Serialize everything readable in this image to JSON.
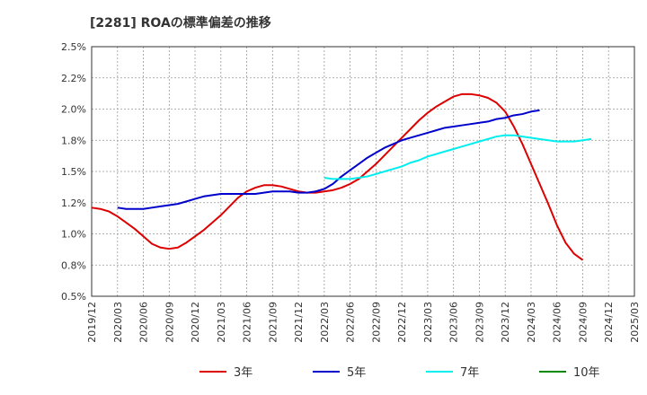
{
  "chart_data": {
    "type": "line",
    "title": "[2281]  ROAの標準偏差の推移",
    "xlabel": "",
    "ylabel": "",
    "x_ticks": [
      "2019/12",
      "2020/03",
      "2020/06",
      "2020/09",
      "2020/12",
      "2021/03",
      "2021/06",
      "2021/09",
      "2021/12",
      "2022/03",
      "2022/06",
      "2022/09",
      "2022/12",
      "2023/03",
      "2023/06",
      "2023/09",
      "2023/12",
      "2024/03",
      "2024/06",
      "2024/09",
      "2024/12",
      "2025/03"
    ],
    "y_ticks": [
      "0.5%",
      "0.8%",
      "1.0%",
      "1.2%",
      "1.5%",
      "1.8%",
      "2.0%",
      "2.2%",
      "2.5%"
    ],
    "y_tick_values": [
      0.5,
      0.75,
      1.0,
      1.25,
      1.5,
      1.75,
      2.0,
      2.25,
      2.5
    ],
    "ylim": [
      0.5,
      2.5
    ],
    "grid": true,
    "legend_position": "bottom",
    "series": [
      {
        "name": "3年",
        "color": "#dd0000",
        "start": "2019/12",
        "values": [
          1.21,
          1.2,
          1.18,
          1.14,
          1.09,
          1.04,
          0.98,
          0.92,
          0.89,
          0.88,
          0.89,
          0.93,
          0.98,
          1.03,
          1.09,
          1.15,
          1.22,
          1.29,
          1.34,
          1.37,
          1.39,
          1.39,
          1.38,
          1.36,
          1.34,
          1.33,
          1.33,
          1.34,
          1.35,
          1.37,
          1.4,
          1.44,
          1.5,
          1.56,
          1.63,
          1.7,
          1.77,
          1.84,
          1.91,
          1.97,
          2.02,
          2.06,
          2.1,
          2.12,
          2.12,
          2.11,
          2.09,
          2.05,
          1.98,
          1.86,
          1.72,
          1.56,
          1.4,
          1.24,
          1.07,
          0.93,
          0.84,
          0.79
        ]
      },
      {
        "name": "5年",
        "color": "#0000cc",
        "start": "2020/03",
        "values": [
          1.21,
          1.2,
          1.2,
          1.2,
          1.21,
          1.22,
          1.23,
          1.24,
          1.26,
          1.28,
          1.3,
          1.31,
          1.32,
          1.32,
          1.32,
          1.32,
          1.32,
          1.33,
          1.34,
          1.34,
          1.34,
          1.33,
          1.33,
          1.34,
          1.36,
          1.4,
          1.46,
          1.51,
          1.56,
          1.61,
          1.65,
          1.69,
          1.72,
          1.75,
          1.77,
          1.79,
          1.81,
          1.83,
          1.85,
          1.86,
          1.87,
          1.88,
          1.89,
          1.9,
          1.92,
          1.93,
          1.95,
          1.96,
          1.98,
          1.99
        ]
      },
      {
        "name": "7年",
        "color": "#00eeee",
        "start": "2022/03",
        "values": [
          1.45,
          1.44,
          1.44,
          1.44,
          1.45,
          1.46,
          1.48,
          1.5,
          1.52,
          1.54,
          1.57,
          1.59,
          1.62,
          1.64,
          1.66,
          1.68,
          1.7,
          1.72,
          1.74,
          1.76,
          1.78,
          1.79,
          1.79,
          1.78,
          1.77,
          1.76,
          1.75,
          1.74,
          1.74,
          1.74,
          1.75,
          1.76
        ]
      },
      {
        "name": "10年",
        "color": "#008800",
        "start": "",
        "values": []
      }
    ]
  }
}
